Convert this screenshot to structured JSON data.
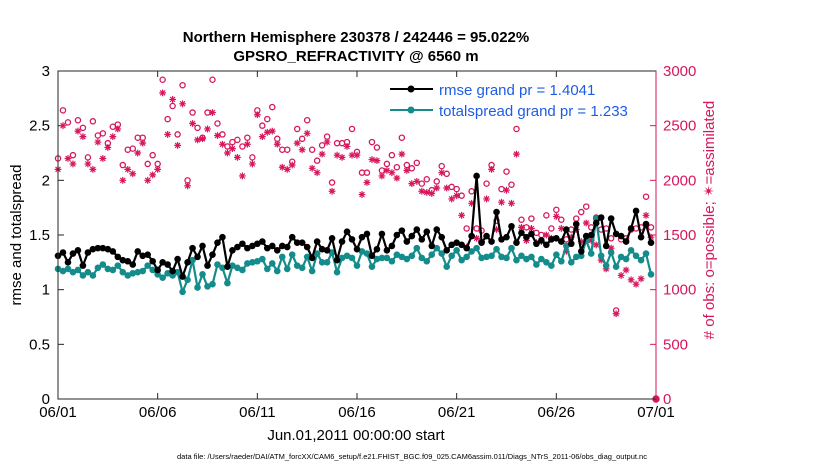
{
  "chart_data": {
    "type": "line",
    "title": "Northern Hemisphere 230378 / 242446 = 95.022%",
    "subtitle": "GPSRO_REFRACTIVITY @ 6560 m",
    "xlabel": "Jun.01,2011 00:00:00 start",
    "ylabel_left": "rmse and totalspread",
    "ylabel_right": "# of obs: o=possible; ✴=assimilated",
    "footer": "data file: /Users/raeder/DAI/ATM_forcXX/CAM6_setup/f.e21.FHIST_BGC.f09_025.CAM6assim.011/Diags_NTrS_2011-06/obs_diag_output.nc",
    "xlim": [
      0,
      30
    ],
    "ylim_left": [
      0,
      3
    ],
    "ylim_right": [
      0,
      3000
    ],
    "x_ticks": [
      0,
      5,
      10,
      15,
      20,
      25,
      30
    ],
    "x_tick_labels": [
      "06/01",
      "06/06",
      "06/11",
      "06/16",
      "06/21",
      "06/26",
      "07/01"
    ],
    "y_ticks_left": [
      0,
      0.5,
      1,
      1.5,
      2,
      2.5,
      3
    ],
    "y_tick_labels_left": [
      "0",
      "0.5",
      "1",
      "1.5",
      "2",
      "2.5",
      "3"
    ],
    "y_ticks_right": [
      0,
      500,
      1000,
      1500,
      2000,
      2500,
      3000
    ],
    "y_tick_labels_right": [
      "0",
      "500",
      "1000",
      "1500",
      "2000",
      "2500",
      "3000"
    ],
    "legend": {
      "placement": "top-right",
      "entries": [
        {
          "label": "rmse grand pr = 1.4041",
          "color": "#000000"
        },
        {
          "label": "totalspread grand pr = 1.233",
          "color": "#148c8c"
        }
      ]
    },
    "colors": {
      "rmse": "#000000",
      "spread": "#148c8c",
      "obs": "#d6175d",
      "axes_left": "#262626",
      "axes_right": "#d6175d",
      "legend_text": "#1f5ce6"
    },
    "x": [
      0.0,
      0.25,
      0.5,
      0.75,
      1.0,
      1.25,
      1.5,
      1.75,
      2.0,
      2.25,
      2.5,
      2.75,
      3.0,
      3.25,
      3.5,
      3.75,
      4.0,
      4.25,
      4.5,
      4.75,
      5.0,
      5.25,
      5.5,
      5.75,
      6.0,
      6.25,
      6.5,
      6.75,
      7.0,
      7.25,
      7.5,
      7.75,
      8.0,
      8.25,
      8.5,
      8.75,
      9.0,
      9.25,
      9.5,
      9.75,
      10.0,
      10.25,
      10.5,
      10.75,
      11.0,
      11.25,
      11.5,
      11.75,
      12.0,
      12.25,
      12.5,
      12.75,
      13.0,
      13.25,
      13.5,
      13.75,
      14.0,
      14.25,
      14.5,
      14.75,
      15.0,
      15.25,
      15.5,
      15.75,
      16.0,
      16.25,
      16.5,
      16.75,
      17.0,
      17.25,
      17.5,
      17.75,
      18.0,
      18.25,
      18.5,
      18.75,
      19.0,
      19.25,
      19.5,
      19.75,
      20.0,
      20.25,
      20.5,
      20.75,
      21.0,
      21.25,
      21.5,
      21.75,
      22.0,
      22.25,
      22.5,
      22.75,
      23.0,
      23.25,
      23.5,
      23.75,
      24.0,
      24.25,
      24.5,
      24.75,
      25.0,
      25.25,
      25.5,
      25.75,
      26.0,
      26.25,
      26.5,
      26.75,
      27.0,
      27.25,
      27.5,
      27.75,
      28.0,
      28.25,
      28.5,
      28.75,
      29.0,
      29.25,
      29.5,
      29.75
    ],
    "series": [
      {
        "name": "rmse grand pr = 1.4041",
        "values": [
          1.31,
          1.34,
          1.25,
          1.33,
          1.36,
          1.22,
          1.34,
          1.37,
          1.38,
          1.38,
          1.37,
          1.35,
          1.3,
          1.27,
          1.26,
          1.23,
          1.35,
          1.31,
          1.32,
          1.26,
          1.18,
          1.25,
          1.23,
          1.17,
          1.28,
          1.12,
          1.25,
          1.38,
          1.3,
          1.4,
          1.22,
          1.32,
          1.43,
          1.48,
          1.21,
          1.36,
          1.39,
          1.42,
          1.38,
          1.4,
          1.42,
          1.44,
          1.38,
          1.4,
          1.36,
          1.4,
          1.39,
          1.48,
          1.43,
          1.43,
          1.39,
          1.29,
          1.44,
          1.37,
          1.36,
          1.47,
          1.27,
          1.44,
          1.53,
          1.46,
          1.37,
          1.48,
          1.51,
          1.31,
          1.37,
          1.51,
          1.36,
          1.4,
          1.5,
          1.54,
          1.44,
          1.49,
          1.55,
          1.46,
          1.53,
          1.4,
          1.55,
          1.48,
          1.36,
          1.41,
          1.43,
          1.41,
          1.38,
          1.49,
          2.04,
          1.43,
          1.49,
          1.44,
          1.71,
          1.46,
          1.48,
          1.58,
          1.43,
          1.52,
          1.48,
          1.51,
          1.42,
          1.45,
          1.41,
          1.46,
          1.47,
          1.44,
          1.55,
          1.42,
          1.6,
          1.35,
          1.49,
          1.5,
          1.61,
          1.66,
          1.4,
          1.65,
          1.51,
          1.49,
          1.44,
          1.56,
          1.72,
          1.48,
          1.6,
          1.43
        ]
      },
      {
        "name": "totalspread grand pr = 1.233",
        "values": [
          1.19,
          1.17,
          1.19,
          1.16,
          1.18,
          1.13,
          1.16,
          1.13,
          1.2,
          1.23,
          1.19,
          1.18,
          1.22,
          1.16,
          1.13,
          1.15,
          1.16,
          1.17,
          1.22,
          1.18,
          1.14,
          1.11,
          1.15,
          1.13,
          1.16,
          0.98,
          1.09,
          1.27,
          1.02,
          1.14,
          1.03,
          1.05,
          1.23,
          1.2,
          1.06,
          1.22,
          1.2,
          1.18,
          1.24,
          1.25,
          1.26,
          1.28,
          1.19,
          1.24,
          1.17,
          1.3,
          1.19,
          1.32,
          1.22,
          1.2,
          1.3,
          1.17,
          1.33,
          1.25,
          1.25,
          1.34,
          1.16,
          1.29,
          1.31,
          1.29,
          1.22,
          1.35,
          1.33,
          1.21,
          1.28,
          1.29,
          1.29,
          1.26,
          1.32,
          1.3,
          1.28,
          1.31,
          1.38,
          1.29,
          1.26,
          1.32,
          1.38,
          1.33,
          1.21,
          1.31,
          1.36,
          1.27,
          1.3,
          1.35,
          1.38,
          1.29,
          1.3,
          1.31,
          1.37,
          1.3,
          1.29,
          1.38,
          1.27,
          1.31,
          1.28,
          1.3,
          1.23,
          1.28,
          1.25,
          1.22,
          1.32,
          1.26,
          1.4,
          1.25,
          1.3,
          1.31,
          1.45,
          1.33,
          1.65,
          1.31,
          1.22,
          1.34,
          1.21,
          1.3,
          1.28,
          1.36,
          1.31,
          1.27,
          1.33,
          1.14
        ]
      },
      {
        "name": "",
        "marker": "o",
        "values": [
          2200,
          2640,
          2530,
          2230,
          2550,
          2480,
          2210,
          2540,
          2410,
          2430,
          2340,
          2490,
          2510,
          2140,
          2280,
          2290,
          2390,
          2390,
          2150,
          2230,
          2150,
          2920,
          2560,
          2680,
          2420,
          2870,
          2000,
          2620,
          2480,
          2390,
          2620,
          2920,
          2520,
          2420,
          2310,
          2350,
          2370,
          2310,
          2390,
          2210,
          2640,
          2500,
          2560,
          2670,
          2380,
          2280,
          2280,
          2170,
          2470,
          2380,
          2550,
          2280,
          2180,
          2320,
          2400,
          1980,
          2340,
          2340,
          2350,
          2470,
          2260,
          2070,
          2070,
          2350,
          2300,
          2090,
          2150,
          2230,
          2120,
          2390,
          2140,
          2110,
          2160,
          1970,
          2010,
          1910,
          1990,
          2130,
          2060,
          1940,
          1920,
          1860,
          1560,
          1900,
          1560,
          1540,
          1970,
          2140,
          1630,
          1920,
          2080,
          1960,
          2470,
          1640,
          1570,
          1650,
          1520,
          1500,
          1680,
          1560,
          1730,
          1640,
          1460,
          1550,
          1650,
          1710,
          1760,
          1570,
          1660,
          1550,
          1560,
          1470,
          810,
          1460,
          1470,
          1550,
          1560,
          1570,
          1850,
          1570
        ]
      },
      {
        "name": "",
        "marker": "*",
        "values": [
          2100,
          2500,
          2200,
          2150,
          2450,
          2400,
          2150,
          2100,
          2350,
          2200,
          2300,
          2400,
          2470,
          2000,
          2100,
          2060,
          2250,
          2340,
          2000,
          2050,
          2100,
          2800,
          2420,
          2740,
          2320,
          2700,
          1950,
          2520,
          2370,
          2380,
          2470,
          2620,
          2410,
          2330,
          2250,
          2290,
          2210,
          2040,
          2330,
          2150,
          2600,
          2400,
          2440,
          2450,
          2330,
          2120,
          2100,
          2140,
          2340,
          2280,
          2430,
          2110,
          2070,
          2240,
          2350,
          1900,
          2230,
          2210,
          2310,
          2230,
          2230,
          1870,
          1980,
          2190,
          2180,
          2040,
          2090,
          2070,
          2020,
          2240,
          2090,
          1970,
          1990,
          1900,
          1890,
          1880,
          1930,
          2070,
          1930,
          1830,
          1860,
          1680,
          1390,
          1790,
          1470,
          1440,
          1830,
          2100,
          1550,
          1800,
          1910,
          1790,
          2240,
          1570,
          1450,
          1560,
          1430,
          1440,
          1500,
          1470,
          1670,
          1560,
          1350,
          1480,
          1550,
          1440,
          1610,
          1450,
          1410,
          1270,
          1190,
          1380,
          780,
          1130,
          1180,
          1090,
          1050,
          1100,
          1680,
          1480
        ]
      }
    ]
  }
}
